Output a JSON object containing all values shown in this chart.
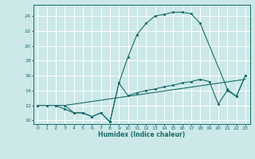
{
  "xlabel": "Humidex (Indice chaleur)",
  "bg_color": "#cce8e8",
  "grid_color": "#ffffff",
  "line_color": "#1a6b6b",
  "xlim": [
    -0.5,
    23.5
  ],
  "ylim": [
    9.5,
    25.5
  ],
  "yticks": [
    10,
    12,
    14,
    16,
    18,
    20,
    22,
    24
  ],
  "xticks": [
    0,
    1,
    2,
    3,
    4,
    5,
    6,
    7,
    8,
    9,
    10,
    11,
    12,
    13,
    14,
    15,
    16,
    17,
    18,
    19,
    20,
    21,
    22,
    23
  ],
  "series1_x": [
    0,
    1,
    2,
    3,
    4,
    5,
    6,
    7,
    8,
    9,
    10,
    11,
    12,
    13,
    14,
    15,
    16,
    17,
    18,
    21,
    22,
    23
  ],
  "series1_y": [
    12,
    12,
    12,
    12,
    11,
    11,
    10.5,
    11,
    9.8,
    15,
    18.5,
    21.5,
    23,
    24,
    24.2,
    24.5,
    24.5,
    24.3,
    23,
    14.2,
    13.2,
    16
  ],
  "series2_x": [
    0,
    1,
    2,
    3,
    4,
    5,
    6,
    7,
    8,
    9,
    10,
    11,
    12,
    13,
    14,
    15,
    16,
    17,
    18,
    19,
    20,
    21,
    22,
    23
  ],
  "series2_y": [
    12,
    12,
    12,
    11.5,
    11,
    11,
    10.5,
    11,
    9.8,
    15,
    13.3,
    13.7,
    14,
    14.2,
    14.5,
    14.7,
    15,
    15.2,
    15.5,
    15.2,
    12.2,
    14,
    13.2,
    16
  ],
  "series3_x": [
    0,
    3,
    23
  ],
  "series3_y": [
    12,
    12,
    15.5
  ]
}
